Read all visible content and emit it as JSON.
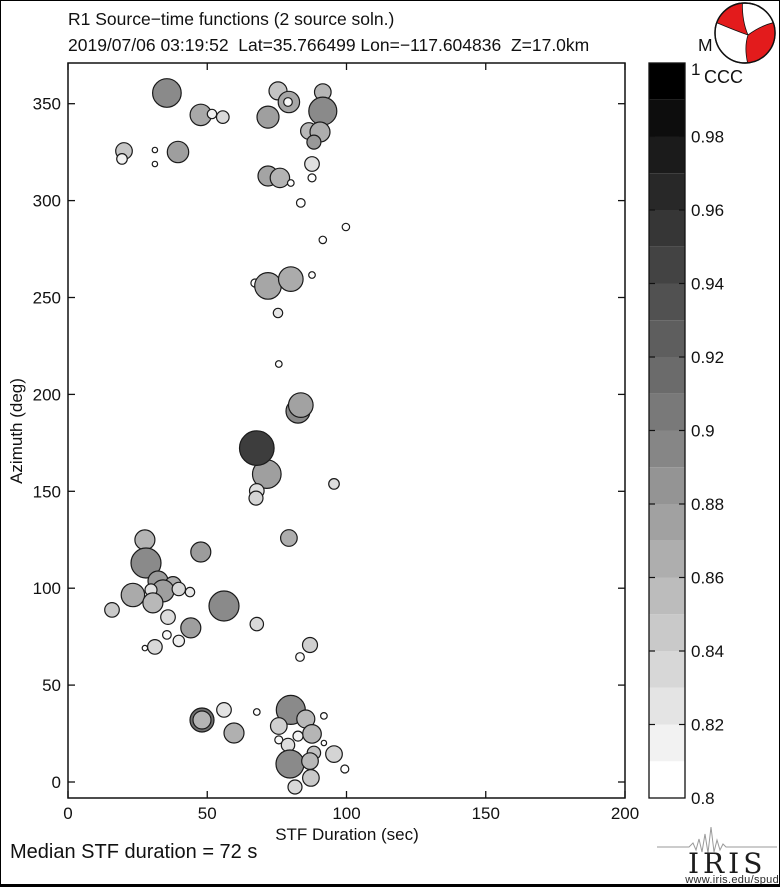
{
  "figure": {
    "title": "R1 Source−time functions (2 source soln.)",
    "subtitle": "2019/07/06 03:19:52  Lat=35.766499 Lon=−117.604836  Z=17.0km",
    "magnitude_label": "M",
    "footer": "Median STF duration = 72 s",
    "beachball_color": "#e31b1c",
    "logo": {
      "name": "IRIS",
      "url_text": "www.iris.edu/spud"
    }
  },
  "chart_data": {
    "type": "scatter",
    "title": "R1 Source−time functions (2 source soln.)",
    "subtitle": "2019/07/06 03:19:52  Lat=35.766499 Lon=−117.604836  Z=17.0km  M",
    "xlabel": "STF Duration (sec)",
    "ylabel": "Azimuth (deg)",
    "xlim": [
      0,
      200
    ],
    "ylim": [
      -8,
      371
    ],
    "grid": false,
    "median_stf_duration_sec": 72,
    "x_ticks": [
      0,
      50,
      100,
      150,
      200
    ],
    "x_tick_labels": [
      "0",
      "50",
      "100",
      "150",
      "200"
    ],
    "y_ticks": [
      0,
      50,
      100,
      150,
      200,
      250,
      300,
      350
    ],
    "y_tick_labels": [
      "0",
      "50",
      "100",
      "150",
      "200",
      "250",
      "300",
      "350"
    ],
    "colorbar": {
      "label": "CCC",
      "min": 0.8,
      "max": 1.0,
      "segments": 20,
      "orientation": "vertical-right",
      "tick_values": [
        1,
        0.98,
        0.96,
        0.94,
        0.92,
        0.9,
        0.88,
        0.86,
        0.84,
        0.82,
        0.8
      ],
      "tick_labels": [
        "1",
        "0.98",
        "0.96",
        "0.94",
        "0.92",
        "0.9",
        "0.88",
        "0.86",
        "0.84",
        "0.82",
        "0.8"
      ]
    },
    "points_columns": [
      "stf_duration_sec",
      "azimuth_deg",
      "radius_px",
      "ccc"
    ],
    "points": [
      [
        35.5,
        355.5,
        14.3,
        0.892
      ],
      [
        47.7,
        344.2,
        10.7,
        0.868
      ],
      [
        51.7,
        344.7,
        4.7,
        0.812
      ],
      [
        55.6,
        343.1,
        6.3,
        0.83
      ],
      [
        75.4,
        356.6,
        9.0,
        0.846
      ],
      [
        79.3,
        350.9,
        10.7,
        0.87
      ],
      [
        79.0,
        350.9,
        4.3,
        0.806
      ],
      [
        71.8,
        343.1,
        11.0,
        0.875
      ],
      [
        91.5,
        356.0,
        8.3,
        0.858
      ],
      [
        91.5,
        346.2,
        14.0,
        0.892
      ],
      [
        86.5,
        335.9,
        8.3,
        0.856
      ],
      [
        90.5,
        335.4,
        10.0,
        0.864
      ],
      [
        88.3,
        330.2,
        7.0,
        0.88
      ],
      [
        20.1,
        325.6,
        8.3,
        0.845
      ],
      [
        19.4,
        321.5,
        5.3,
        0.81
      ],
      [
        31.2,
        326.1,
        2.7,
        0.8
      ],
      [
        31.2,
        318.9,
        2.7,
        0.8
      ],
      [
        39.5,
        325.1,
        10.7,
        0.876
      ],
      [
        71.8,
        312.7,
        10.0,
        0.871
      ],
      [
        76.1,
        311.7,
        9.7,
        0.86
      ],
      [
        80.0,
        309.1,
        3.3,
        0.8
      ],
      [
        87.6,
        318.9,
        7.3,
        0.824
      ],
      [
        87.6,
        311.7,
        4.0,
        0.8
      ],
      [
        83.6,
        298.8,
        4.3,
        0.8
      ],
      [
        99.8,
        286.4,
        3.7,
        0.8
      ],
      [
        91.5,
        279.7,
        3.7,
        0.8
      ],
      [
        67.1,
        257.5,
        4.0,
        0.8
      ],
      [
        71.8,
        256.0,
        13.3,
        0.87
      ],
      [
        80.0,
        259.5,
        12.3,
        0.866
      ],
      [
        87.6,
        261.6,
        3.3,
        0.8
      ],
      [
        75.4,
        242.0,
        4.7,
        0.82
      ],
      [
        75.7,
        215.7,
        3.3,
        0.8
      ],
      [
        82.6,
        191.4,
        12.0,
        0.892
      ],
      [
        83.6,
        194.5,
        12.3,
        0.873
      ],
      [
        71.4,
        158.9,
        14.3,
        0.875
      ],
      [
        67.8,
        172.3,
        17.3,
        0.952
      ],
      [
        67.8,
        150.2,
        7.3,
        0.824
      ],
      [
        67.5,
        146.5,
        7.0,
        0.834
      ],
      [
        95.5,
        153.8,
        5.3,
        0.826
      ],
      [
        27.6,
        124.9,
        10.0,
        0.859
      ],
      [
        47.7,
        118.7,
        10.0,
        0.878
      ],
      [
        79.3,
        125.9,
        8.3,
        0.864
      ],
      [
        28.0,
        113.0,
        15.0,
        0.892
      ],
      [
        32.3,
        103.7,
        10.0,
        0.879
      ],
      [
        37.7,
        101.7,
        8.3,
        0.866
      ],
      [
        34.1,
        98.6,
        11.0,
        0.876
      ],
      [
        23.3,
        96.5,
        11.7,
        0.867
      ],
      [
        29.8,
        99.1,
        6.0,
        0.824
      ],
      [
        39.8,
        99.6,
        6.7,
        0.832
      ],
      [
        43.8,
        98.0,
        4.7,
        0.818
      ],
      [
        30.5,
        92.4,
        10.0,
        0.856
      ],
      [
        15.8,
        88.8,
        7.3,
        0.842
      ],
      [
        56.0,
        90.8,
        15.0,
        0.892
      ],
      [
        35.9,
        85.1,
        7.3,
        0.827
      ],
      [
        44.1,
        79.5,
        10.0,
        0.876
      ],
      [
        35.5,
        75.9,
        4.3,
        0.804
      ],
      [
        39.8,
        72.8,
        5.7,
        0.812
      ],
      [
        31.2,
        69.7,
        7.3,
        0.83
      ],
      [
        27.6,
        69.1,
        2.7,
        0.8
      ],
      [
        67.8,
        81.5,
        6.7,
        0.83
      ],
      [
        86.9,
        70.7,
        7.5,
        0.837
      ],
      [
        83.3,
        64.5,
        4.3,
        0.804
      ],
      [
        48.1,
        32.0,
        12.0,
        0.914
      ],
      [
        48.1,
        32.0,
        9.0,
        0.859
      ],
      [
        56.0,
        37.2,
        7.3,
        0.822
      ],
      [
        59.6,
        25.3,
        10.0,
        0.862
      ],
      [
        67.8,
        36.1,
        3.3,
        0.8
      ],
      [
        80.0,
        37.2,
        14.5,
        0.892
      ],
      [
        85.4,
        32.5,
        9.0,
        0.856
      ],
      [
        75.7,
        28.9,
        8.3,
        0.837
      ],
      [
        91.9,
        34.1,
        3.3,
        0.8
      ],
      [
        87.6,
        24.8,
        9.3,
        0.858
      ],
      [
        82.6,
        23.7,
        5.0,
        0.81
      ],
      [
        91.9,
        20.1,
        2.7,
        0.8
      ],
      [
        75.7,
        21.7,
        4.0,
        0.804
      ],
      [
        79.0,
        19.1,
        6.7,
        0.827
      ],
      [
        95.5,
        14.4,
        8.3,
        0.834
      ],
      [
        88.3,
        15.0,
        6.7,
        0.849
      ],
      [
        79.7,
        9.3,
        14.0,
        0.892
      ],
      [
        86.9,
        10.8,
        8.3,
        0.856
      ],
      [
        87.2,
        2.1,
        8.3,
        0.842
      ],
      [
        99.4,
        6.7,
        4.0,
        0.8
      ],
      [
        81.5,
        -2.6,
        7.0,
        0.83
      ]
    ]
  }
}
